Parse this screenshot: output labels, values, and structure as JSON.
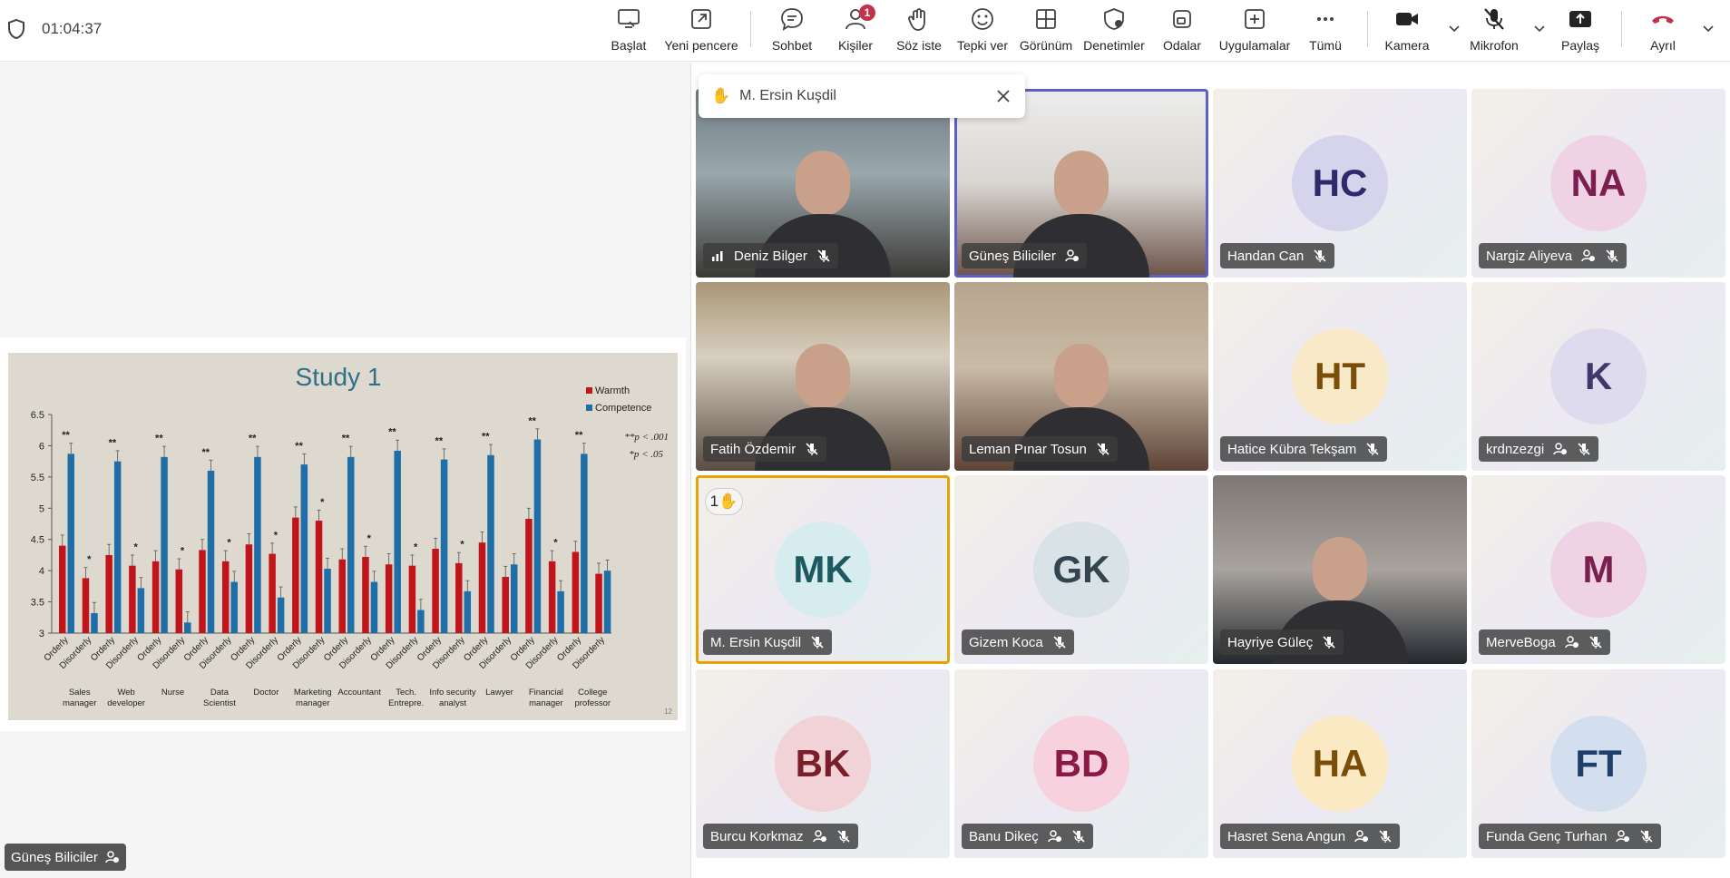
{
  "meeting": {
    "timer": "01:04:37"
  },
  "toolbar": {
    "items": [
      {
        "label": "Başlat",
        "icon": "screen-start-icon"
      },
      {
        "label": "Yeni pencere",
        "icon": "new-window-icon"
      },
      {
        "label": "Sohbet",
        "icon": "chat-icon"
      },
      {
        "label": "Kişiler",
        "icon": "people-icon",
        "badge": "1"
      },
      {
        "label": "Söz iste",
        "icon": "raise-hand-icon"
      },
      {
        "label": "Tepki ver",
        "icon": "react-icon"
      },
      {
        "label": "Görünüm",
        "icon": "view-icon"
      },
      {
        "label": "Denetimler",
        "icon": "controls-icon"
      },
      {
        "label": "Odalar",
        "icon": "rooms-icon"
      },
      {
        "label": "Uygulamalar",
        "icon": "apps-icon"
      },
      {
        "label": "Tümü",
        "icon": "more-icon"
      },
      {
        "label": "Kamera",
        "icon": "camera-icon"
      },
      {
        "label": "Mikrofon",
        "icon": "mic-off-icon"
      },
      {
        "label": "Paylaş",
        "icon": "share-icon"
      },
      {
        "label": "Ayrıl",
        "icon": "hang-up-icon",
        "color": "#c4314b"
      }
    ]
  },
  "presenter": {
    "name": "Güneş Biliciler"
  },
  "hand_popup": {
    "name": "M. Ersin Kuşdil"
  },
  "raised_hand_badge": "1",
  "participants": [
    {
      "name": "Deniz Bilger",
      "video": true
    },
    {
      "name": "Güneş Biliciler",
      "video": true,
      "speaking": true
    },
    {
      "name": "Handan Can",
      "initials": "HC",
      "bg": "#d6d3ec",
      "fg": "#2f2a6b"
    },
    {
      "name": "Nargiz Aliyeva",
      "initials": "NA",
      "bg": "#efd2e3",
      "fg": "#7a1f4f"
    },
    {
      "name": "Fatih Özdemir",
      "video": true
    },
    {
      "name": "Leman Pınar Tosun",
      "video": true
    },
    {
      "name": "Hatice Kübra Tekşam",
      "initials": "HT",
      "bg": "#f8e9c8",
      "fg": "#7a4d08"
    },
    {
      "name": "krdnzezgi",
      "initials": "K",
      "bg": "#dfdbee",
      "fg": "#3d3a6b"
    },
    {
      "name": "M. Ersin Kuşdil",
      "initials": "MK",
      "bg": "#d6ecee",
      "fg": "#1d5a60",
      "hand": true
    },
    {
      "name": "Gizem Koca",
      "initials": "GK",
      "bg": "#d9e2e6",
      "fg": "#33464f"
    },
    {
      "name": "Hayriye Güleç",
      "video": true
    },
    {
      "name": "MerveBoga",
      "initials": "M",
      "bg": "#efd2e3",
      "fg": "#7a1f4f"
    },
    {
      "name": "Burcu Korkmaz",
      "initials": "BK",
      "bg": "#f1d2d6",
      "fg": "#7a1f2a"
    },
    {
      "name": "Banu Dikeç",
      "initials": "BD",
      "bg": "#f7d1de",
      "fg": "#8a1a45"
    },
    {
      "name": "Hasret Sena Angun",
      "initials": "HA",
      "bg": "#fbe9c4",
      "fg": "#7a4d08"
    },
    {
      "name": "Funda Genç Turhan",
      "initials": "FT",
      "bg": "#d3dfee",
      "fg": "#1e3f6b"
    }
  ],
  "chart_data": {
    "type": "bar",
    "title": "Study 1",
    "legend": [
      "Warmth",
      "Competence"
    ],
    "legend_position": "top-right",
    "colors": {
      "Warmth": "#c0151b",
      "Competence": "#1f6ea8"
    },
    "ylim": [
      3,
      6.5
    ],
    "yticks": [
      "3",
      "3.5",
      "4",
      "4.5",
      "5",
      "5.5",
      "6",
      "6.5"
    ],
    "notes": [
      "**p < .001",
      "*p < .05"
    ],
    "slide_number": "12",
    "groups": [
      {
        "label": "Sales manager",
        "line1": "Sales",
        "line2": "manager",
        "sig_orderly": "**",
        "sig_disorderly": "*",
        "orderly": {
          "warmth": 4.4,
          "competence": 5.87
        },
        "disorderly": {
          "warmth": 3.88,
          "competence": 3.32
        }
      },
      {
        "label": "Web developer",
        "line1": "Web",
        "line2": "developer",
        "sig_orderly": "**",
        "sig_disorderly": "*",
        "orderly": {
          "warmth": 4.25,
          "competence": 5.75
        },
        "disorderly": {
          "warmth": 4.08,
          "competence": 3.72
        }
      },
      {
        "label": "Nurse",
        "line1": "Nurse",
        "line2": "",
        "sig_orderly": "**",
        "sig_disorderly": "*",
        "orderly": {
          "warmth": 4.15,
          "competence": 5.82
        },
        "disorderly": {
          "warmth": 4.02,
          "competence": 3.17
        }
      },
      {
        "label": "Data Scientist",
        "line1": "Data",
        "line2": "Scientist",
        "sig_orderly": "**",
        "sig_disorderly": "*",
        "orderly": {
          "warmth": 4.33,
          "competence": 5.6
        },
        "disorderly": {
          "warmth": 4.15,
          "competence": 3.82
        }
      },
      {
        "label": "Doctor",
        "line1": "Doctor",
        "line2": "",
        "sig_orderly": "**",
        "sig_disorderly": "*",
        "orderly": {
          "warmth": 4.42,
          "competence": 5.82
        },
        "disorderly": {
          "warmth": 4.27,
          "competence": 3.57
        }
      },
      {
        "label": "Marketing manager",
        "line1": "Marketing",
        "line2": "manager",
        "sig_orderly": "**",
        "sig_disorderly": "*",
        "orderly": {
          "warmth": 4.85,
          "competence": 5.7
        },
        "disorderly": {
          "warmth": 4.8,
          "competence": 4.03
        }
      },
      {
        "label": "Accountant",
        "line1": "Accountant",
        "line2": "",
        "sig_orderly": "**",
        "sig_disorderly": "*",
        "orderly": {
          "warmth": 4.18,
          "competence": 5.82
        },
        "disorderly": {
          "warmth": 4.22,
          "competence": 3.82
        }
      },
      {
        "label": "Tech. Entrepre.",
        "line1": "Tech.",
        "line2": "Entrepre.",
        "sig_orderly": "**",
        "sig_disorderly": "*",
        "orderly": {
          "warmth": 4.1,
          "competence": 5.92
        },
        "disorderly": {
          "warmth": 4.08,
          "competence": 3.37
        }
      },
      {
        "label": "Info security analyst",
        "line1": "Info security",
        "line2": "analyst",
        "sig_orderly": "**",
        "sig_disorderly": "*",
        "orderly": {
          "warmth": 4.35,
          "competence": 5.78
        },
        "disorderly": {
          "warmth": 4.12,
          "competence": 3.67
        }
      },
      {
        "label": "Lawyer",
        "line1": "Lawyer",
        "line2": "",
        "sig_orderly": "**",
        "sig_disorderly": "",
        "orderly": {
          "warmth": 4.45,
          "competence": 5.85
        },
        "disorderly": {
          "warmth": 3.9,
          "competence": 4.1
        }
      },
      {
        "label": "Financial manager",
        "line1": "Financial",
        "line2": "manager",
        "sig_orderly": "**",
        "sig_disorderly": "*",
        "orderly": {
          "warmth": 4.83,
          "competence": 6.1
        },
        "disorderly": {
          "warmth": 4.15,
          "competence": 3.67
        }
      },
      {
        "label": "College professor",
        "line1": "College",
        "line2": "professor",
        "sig_orderly": "**",
        "sig_disorderly": "",
        "orderly": {
          "warmth": 4.3,
          "competence": 5.87
        },
        "disorderly": {
          "warmth": 3.95,
          "competence": 4.0
        }
      }
    ],
    "x_tick_labels": [
      "Orderly",
      "Disorderly"
    ]
  }
}
